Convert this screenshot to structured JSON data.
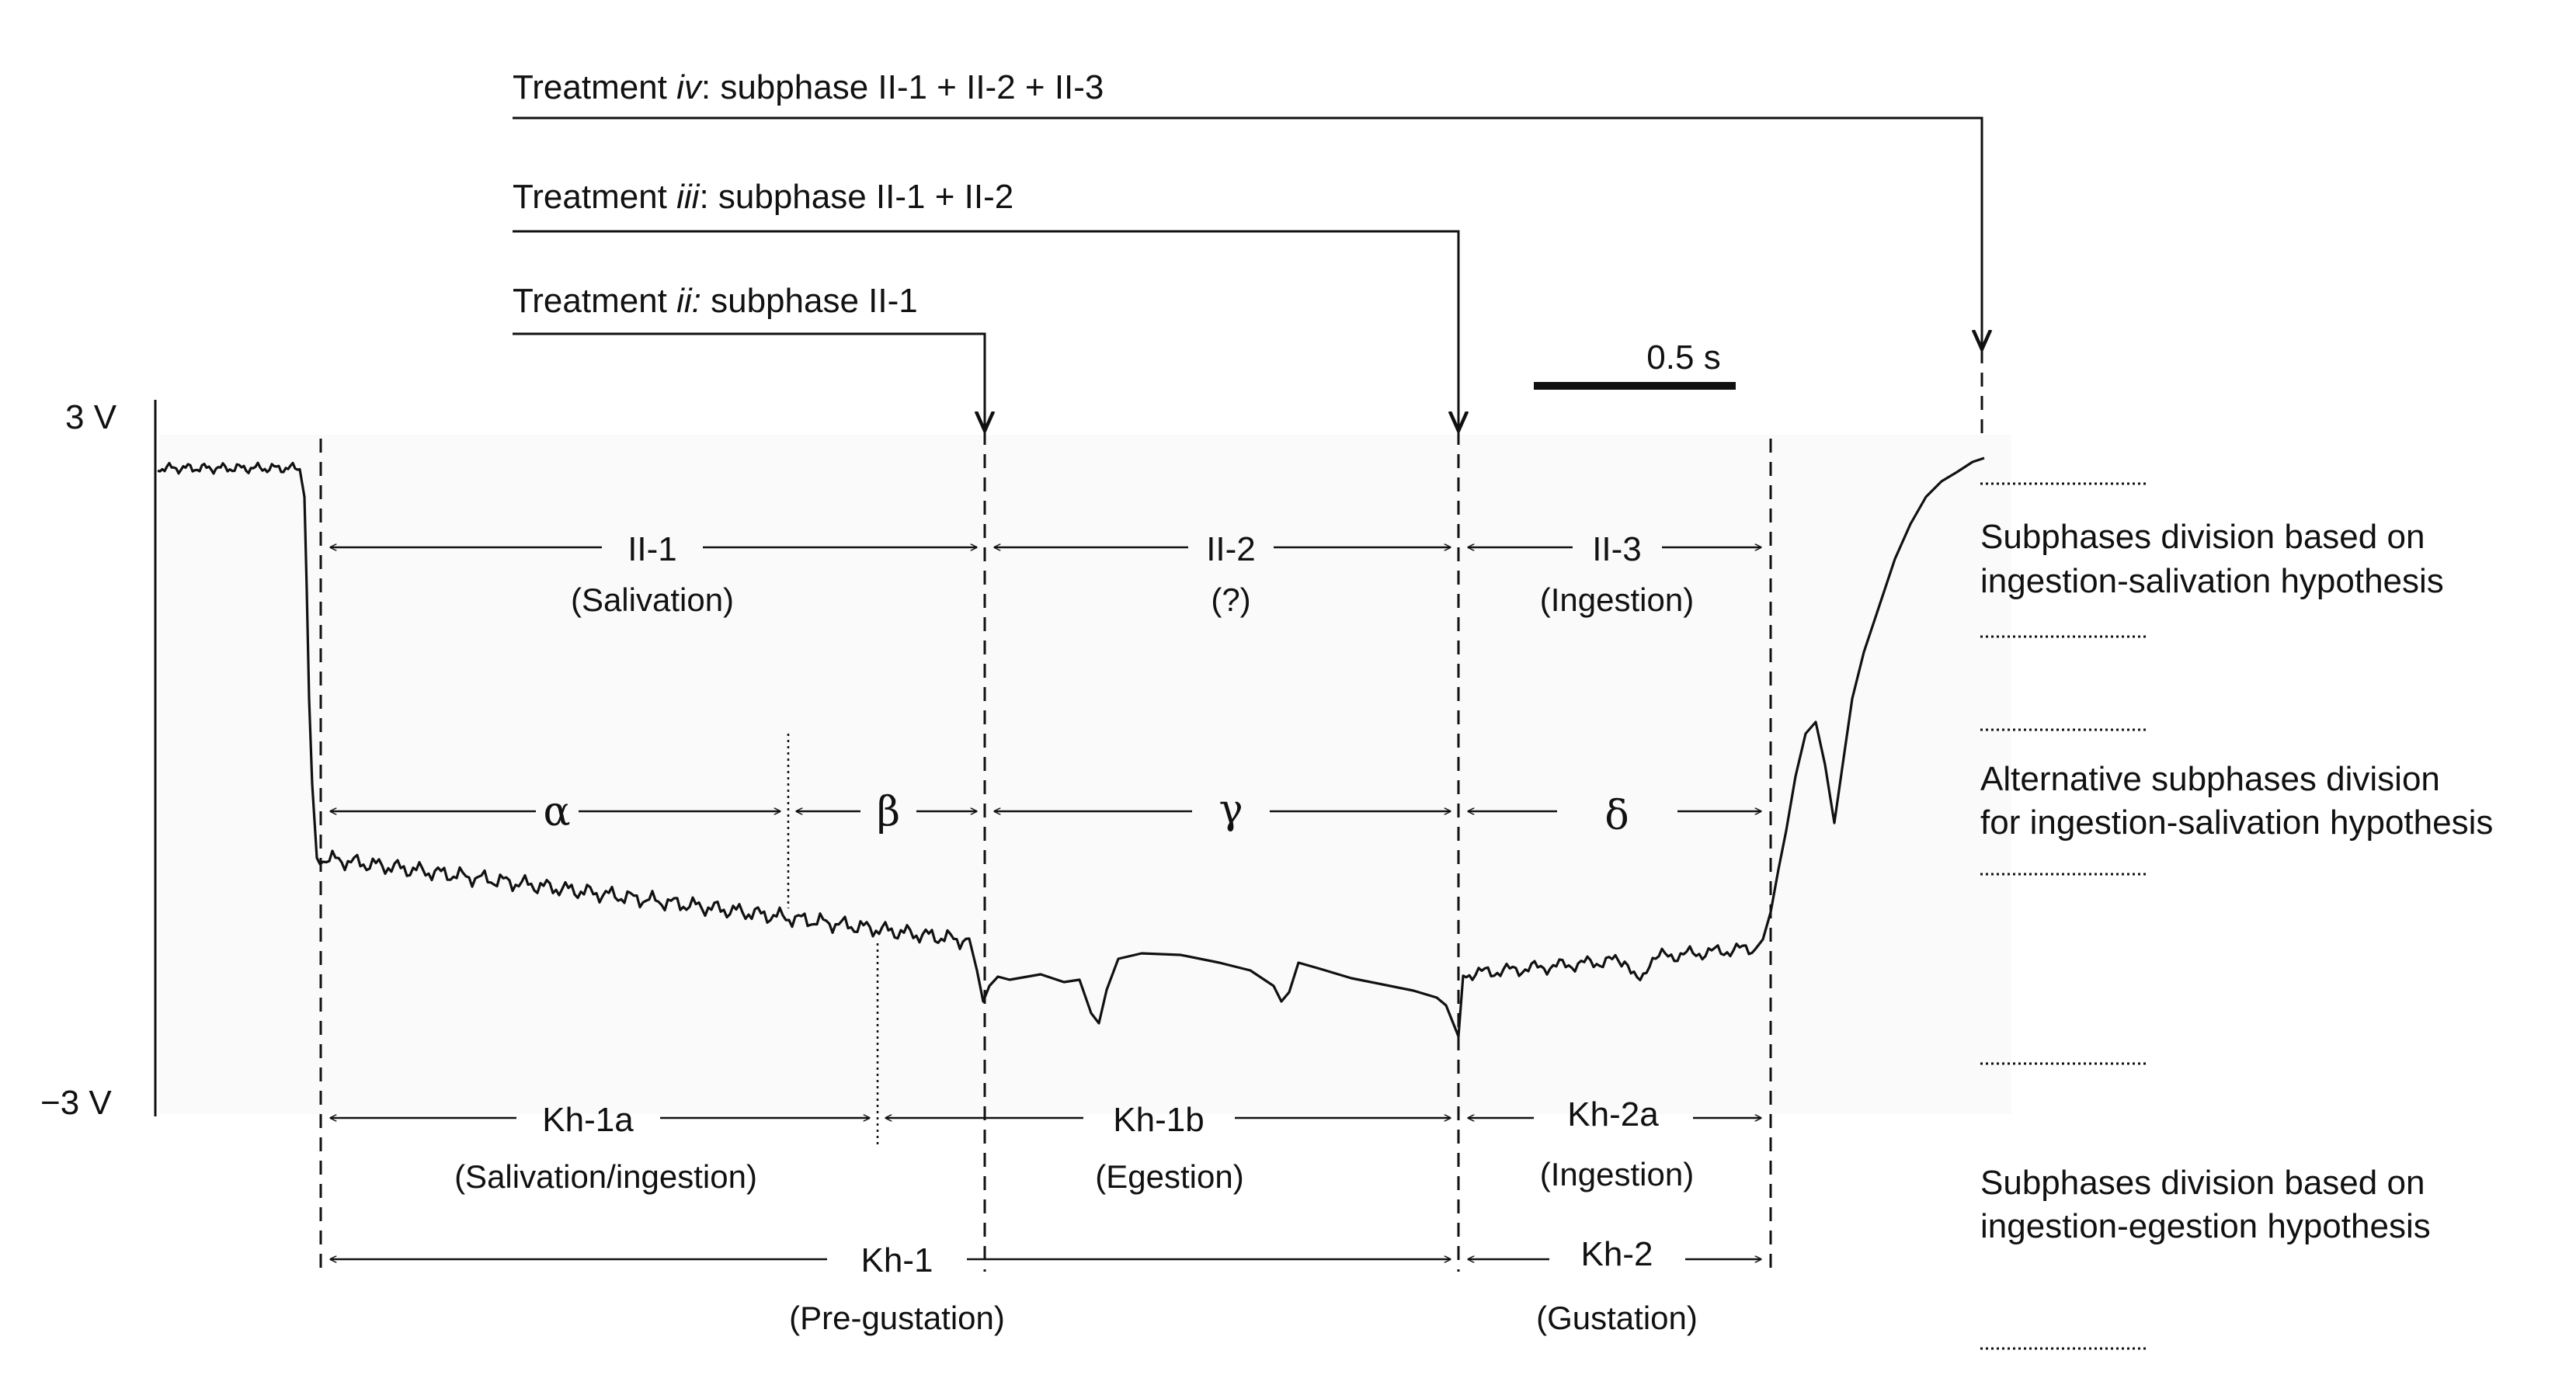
{
  "treatments": [
    {
      "prefix": "Treatment ",
      "roman": "iv",
      "suffix": ": subphase II-1 + II-2 + II-3"
    },
    {
      "prefix": "Treatment ",
      "roman": "iii",
      "suffix": ": subphase II-1 + II-2"
    },
    {
      "prefix": "Treatment ",
      "roman": "ii:",
      "suffix": " subphase II-1"
    }
  ],
  "scale_bar": "0.5 s",
  "y_axis": {
    "top": "3 V",
    "bottom": "−3 V"
  },
  "row_ingestion_salivation": [
    {
      "label": "II-1",
      "sub": "(Salivation)"
    },
    {
      "label": "II-2",
      "sub": "(?)"
    },
    {
      "label": "II-3",
      "sub": "(Ingestion)"
    }
  ],
  "row_alternative": [
    {
      "label": "α"
    },
    {
      "label": "β"
    },
    {
      "label": "γ"
    },
    {
      "label": "δ"
    }
  ],
  "row_kh_sub": [
    {
      "label": "Kh-1a",
      "sub": "(Salivation/ingestion)"
    },
    {
      "label": "Kh-1b",
      "sub": "(Egestion)"
    },
    {
      "label": "Kh-2a",
      "sub": "(Ingestion)"
    }
  ],
  "row_kh": [
    {
      "label": "Kh-1",
      "sub": "(Pre-gustation)"
    },
    {
      "label": "Kh-2",
      "sub": "(Gustation)"
    }
  ],
  "notes": [
    {
      "line1": "Subphases division based on",
      "line2": "ingestion-salivation hypothesis"
    },
    {
      "line1": "Alternative subphases division",
      "line2": "for ingestion-salivation hypothesis"
    },
    {
      "line1": "Subphases division based on",
      "line2": "ingestion-egestion hypothesis"
    }
  ]
}
